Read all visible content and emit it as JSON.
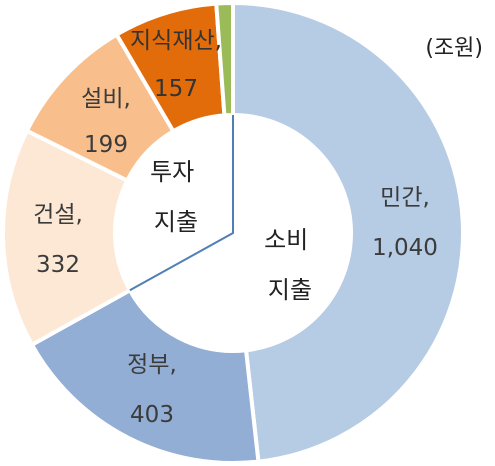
{
  "chart_data": {
    "type": "pie",
    "unit_label": "(조원)",
    "slices": [
      {
        "name": "민간",
        "value": 1040,
        "value_label": "1,040",
        "color": "#b6cbe4"
      },
      {
        "name": "정부",
        "value": 403,
        "value_label": "403",
        "color": "#93aed4"
      },
      {
        "name": "건설",
        "value": 332,
        "value_label": "332",
        "color": "#fde8d6"
      },
      {
        "name": "설비",
        "value": 199,
        "value_label": "199",
        "color": "#f8bf8c"
      },
      {
        "name": "지식재산",
        "value": 157,
        "value_label": "157",
        "color": "#e36c0a"
      },
      {
        "name": "",
        "value": 25,
        "value_label": "",
        "color": "#9bbb59"
      }
    ],
    "groups": [
      {
        "name_line1": "소비",
        "name_line2": "지출"
      },
      {
        "name_line1": "투자",
        "name_line2": "지출"
      }
    ]
  }
}
